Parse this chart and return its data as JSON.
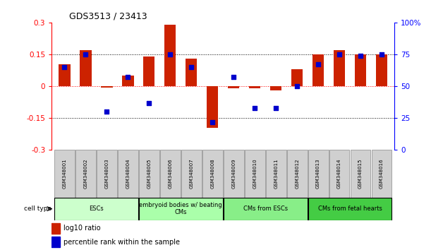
{
  "title": "GDS3513 / 23413",
  "samples": [
    "GSM348001",
    "GSM348002",
    "GSM348003",
    "GSM348004",
    "GSM348005",
    "GSM348006",
    "GSM348007",
    "GSM348008",
    "GSM348009",
    "GSM348010",
    "GSM348011",
    "GSM348012",
    "GSM348013",
    "GSM348014",
    "GSM348015",
    "GSM348016"
  ],
  "log10_ratio": [
    0.105,
    0.17,
    -0.005,
    0.05,
    0.14,
    0.29,
    0.13,
    -0.195,
    -0.01,
    -0.01,
    -0.02,
    0.08,
    0.15,
    0.17,
    0.15,
    0.15
  ],
  "percentile_rank": [
    65,
    75,
    30,
    57,
    37,
    75,
    65,
    22,
    57,
    33,
    33,
    50,
    67,
    75,
    74,
    75
  ],
  "cell_groups": [
    {
      "label": "ESCs",
      "start": 0,
      "end": 4,
      "color": "#ccffcc"
    },
    {
      "label": "embryoid bodies w/ beating\nCMs",
      "start": 4,
      "end": 8,
      "color": "#aaffaa"
    },
    {
      "label": "CMs from ESCs",
      "start": 8,
      "end": 12,
      "color": "#88ee88"
    },
    {
      "label": "CMs from fetal hearts",
      "start": 12,
      "end": 16,
      "color": "#44cc44"
    }
  ],
  "ylim_left": [
    -0.3,
    0.3
  ],
  "ylim_right": [
    0,
    100
  ],
  "yticks_left": [
    -0.3,
    -0.15,
    0,
    0.15,
    0.3
  ],
  "yticks_right": [
    0,
    25,
    50,
    75,
    100
  ],
  "ytick_labels_left": [
    "-0.3",
    "-0.15",
    "0",
    "0.15",
    "0.3"
  ],
  "ytick_labels_right": [
    "0",
    "25",
    "50",
    "75",
    "100%"
  ],
  "hlines": [
    0.15,
    -0.15,
    0.0
  ],
  "bar_color_red": "#cc2200",
  "bar_color_blue": "#0000cc",
  "legend_red": "log10 ratio",
  "legend_blue": "percentile rank within the sample",
  "cell_type_label": "cell type"
}
